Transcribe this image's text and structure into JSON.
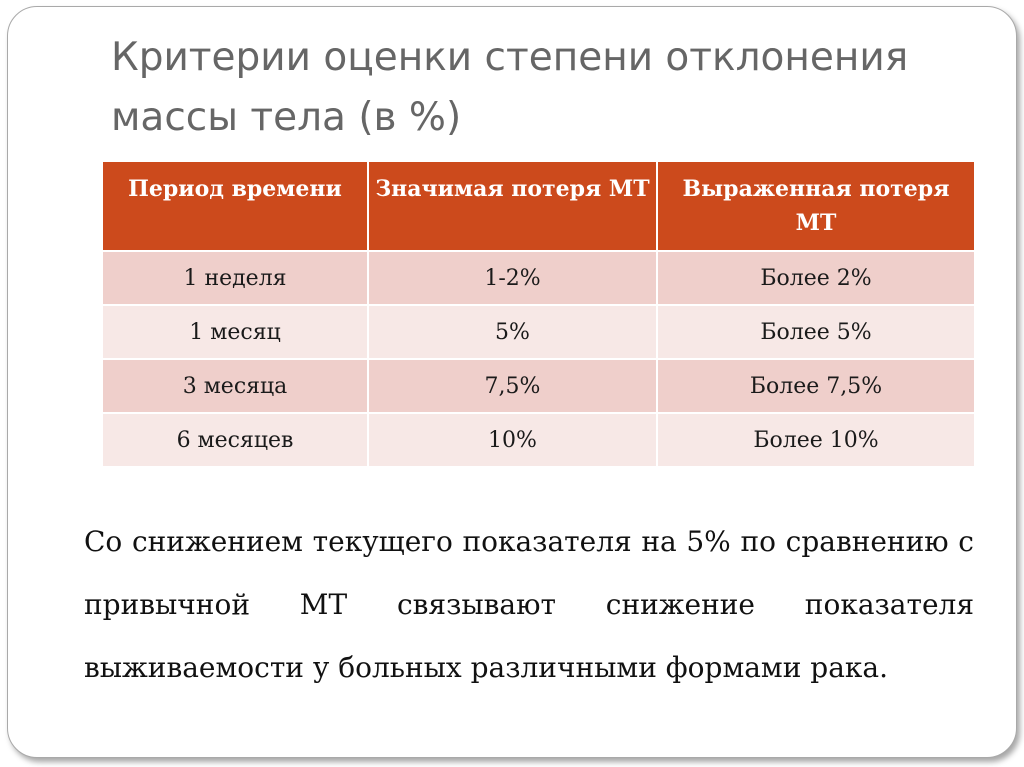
{
  "title": "Критерии оценки степени отклонения массы тела (в %)",
  "table": {
    "headers": [
      "Период времени",
      "Значимая потеря МТ",
      "Выраженная потеря МТ"
    ],
    "rows": [
      [
        "1 неделя",
        "1-2%",
        "Более 2%"
      ],
      [
        "1 месяц",
        "5%",
        "Более 5%"
      ],
      [
        "3 месяца",
        "7,5%",
        "Более 7,5%"
      ],
      [
        "6 месяцев",
        "10%",
        "Более 10%"
      ]
    ]
  },
  "note": "Со снижением текущего показателя на 5% по сравнению с привычной МТ связывают снижение показателя выживаемости у больных различными формами рака.",
  "colors": {
    "header_bg": "#cc4a1c",
    "row_odd_bg": "#efcfcb",
    "row_even_bg": "#f7e8e6",
    "title_text": "#666666"
  }
}
